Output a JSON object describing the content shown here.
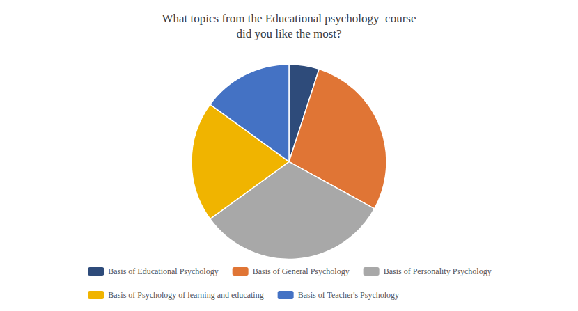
{
  "chart_data": {
    "type": "pie",
    "title": "What topics from the Educational psychology  course\ndid you like the most?",
    "categories": [
      "Basis of Educational Psychology",
      "Basis of General Psychology",
      "Basis of Personality Psychology",
      "Basis of Psychology of learning and educating",
      "Basis of Teacher's Psychology"
    ],
    "values": [
      5,
      28,
      32,
      20,
      15
    ],
    "colors": [
      "#2e4b7a",
      "#e07535",
      "#a8a8a8",
      "#f0b400",
      "#4472c4"
    ],
    "legend": "bottom"
  }
}
